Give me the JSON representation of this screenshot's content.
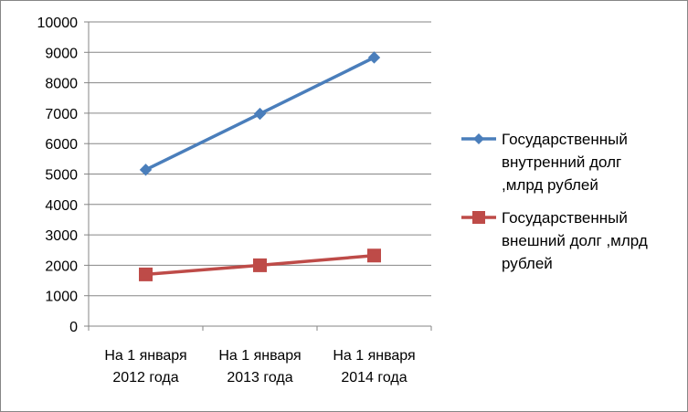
{
  "chart_data": {
    "type": "line",
    "title": "",
    "xlabel": "",
    "ylabel": "",
    "categories": [
      [
        "На 1 января",
        "2012 года"
      ],
      [
        "На 1 января",
        "2013 года"
      ],
      [
        "На 1 января",
        "2014 года"
      ]
    ],
    "ylim": [
      0,
      10000
    ],
    "yticks": [
      0,
      1000,
      2000,
      3000,
      4000,
      5000,
      6000,
      7000,
      8000,
      9000,
      10000
    ],
    "grid": true,
    "legend_position": "right",
    "series": [
      {
        "name": "Государственный внутренний долг ,млрд рублей",
        "legend_lines": [
          "Государственный",
          "внутренний долг",
          ",млрд рублей"
        ],
        "values": [
          5140,
          6980,
          8830
        ],
        "color": "#4a7ebb",
        "marker": "diamond"
      },
      {
        "name": "Государственный внешний долг ,млрд рублей",
        "legend_lines": [
          "Государственный",
          "внешний долг ,млрд",
          "рублей"
        ],
        "values": [
          1700,
          2000,
          2320
        ],
        "color": "#be4b48",
        "marker": "square"
      }
    ]
  }
}
